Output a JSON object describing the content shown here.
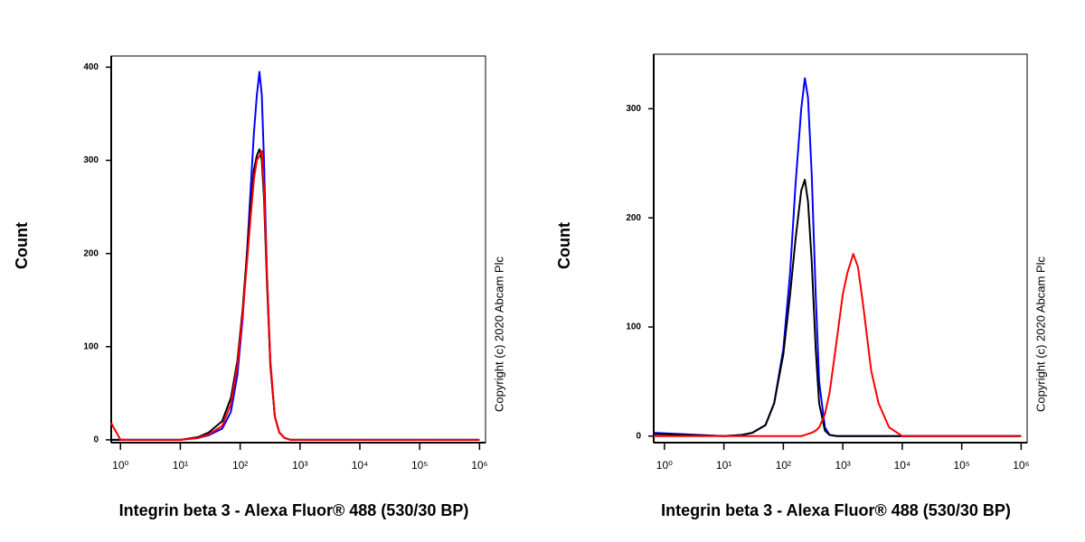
{
  "chart_data": [
    {
      "type": "line",
      "xlabel": "Integrin beta 3 - Alexa Fluor® 488 (530/30 BP)",
      "ylabel": "Count",
      "annotation": "Copyright (c) 2020 Abcam Plc",
      "xscale": "log",
      "xlim": [
        0.7,
        1260000
      ],
      "ylim": [
        -3,
        412
      ],
      "xticks": [
        {
          "value": 1,
          "label": "10⁰"
        },
        {
          "value": 10,
          "label": "10¹"
        },
        {
          "value": 100,
          "label": "10²"
        },
        {
          "value": 1000,
          "label": "10³"
        },
        {
          "value": 10000,
          "label": "10⁴"
        },
        {
          "value": 100000,
          "label": "10⁵"
        },
        {
          "value": 1000000,
          "label": "10⁶"
        }
      ],
      "yticks": [
        0,
        100,
        200,
        300,
        400
      ],
      "x": [
        0.7,
        1,
        10,
        20,
        30,
        50,
        70,
        90,
        110,
        130,
        150,
        170,
        190,
        210,
        230,
        250,
        280,
        320,
        380,
        450,
        550,
        700,
        1000,
        10000,
        100000,
        1000000
      ],
      "series": [
        {
          "color": "#0000ff",
          "values": [
            0,
            0,
            0,
            2,
            5,
            12,
            30,
            70,
            130,
            200,
            270,
            330,
            370,
            395,
            370,
            300,
            180,
            80,
            25,
            8,
            2,
            0,
            0,
            0,
            0,
            0
          ]
        },
        {
          "color": "#000000",
          "values": [
            0,
            0,
            0,
            3,
            8,
            20,
            45,
            85,
            140,
            200,
            250,
            290,
            305,
            312,
            300,
            260,
            170,
            80,
            25,
            8,
            2,
            0,
            0,
            0,
            0,
            0
          ]
        },
        {
          "color": "#ff0000",
          "values": [
            18,
            0,
            0,
            2,
            6,
            15,
            38,
            80,
            135,
            190,
            240,
            280,
            300,
            305,
            310,
            270,
            180,
            85,
            25,
            8,
            2,
            0,
            0,
            0,
            0,
            0
          ]
        }
      ]
    },
    {
      "type": "line",
      "xlabel": "Integrin beta 3 - Alexa Fluor® 488 (530/30 BP)",
      "ylabel": "Count",
      "annotation": "Copyright (c) 2020 Abcam Plc",
      "xscale": "log",
      "xlim": [
        0.66,
        1260000
      ],
      "ylim": [
        -6,
        350
      ],
      "xticks": [
        {
          "value": 1,
          "label": "10⁰"
        },
        {
          "value": 10,
          "label": "10¹"
        },
        {
          "value": 100,
          "label": "10²"
        },
        {
          "value": 1000,
          "label": "10³"
        },
        {
          "value": 10000,
          "label": "10⁴"
        },
        {
          "value": 100000,
          "label": "10⁵"
        },
        {
          "value": 1000000,
          "label": "10⁶"
        }
      ],
      "yticks": [
        0,
        100,
        200,
        300
      ],
      "x": [
        0.66,
        10,
        20,
        30,
        50,
        70,
        100,
        130,
        160,
        200,
        230,
        260,
        300,
        350,
        400,
        500,
        600,
        800,
        1000,
        1200,
        1500,
        1800,
        2200,
        3000,
        4000,
        6000,
        10000,
        100000,
        1000000
      ],
      "series": [
        {
          "color": "#0000ff",
          "values": [
            3,
            0,
            1,
            3,
            10,
            30,
            80,
            150,
            230,
            300,
            328,
            310,
            240,
            130,
            50,
            8,
            1,
            0,
            0,
            0,
            0,
            0,
            0,
            0,
            0,
            0,
            0,
            0,
            0
          ]
        },
        {
          "color": "#000000",
          "values": [
            2,
            0,
            1,
            3,
            10,
            30,
            75,
            130,
            180,
            225,
            235,
            215,
            160,
            80,
            30,
            5,
            1,
            0,
            0,
            0,
            0,
            0,
            0,
            0,
            0,
            0,
            0,
            0,
            0
          ]
        },
        {
          "color": "#ff0000",
          "values": [
            0,
            0,
            0,
            0,
            0,
            0,
            0,
            0,
            0,
            0,
            1,
            2,
            3,
            5,
            8,
            20,
            40,
            90,
            130,
            150,
            167,
            155,
            120,
            60,
            30,
            8,
            0,
            0,
            0
          ]
        }
      ]
    }
  ]
}
